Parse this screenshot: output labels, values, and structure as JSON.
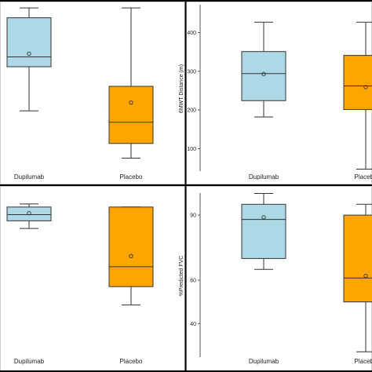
{
  "colors": {
    "dupilumab": "#add8e6",
    "placebo": "#ffa500",
    "outline": "#333333",
    "divider": "#000000"
  },
  "chart_data": [
    {
      "type": "box",
      "panel": "top-left",
      "xlabel": "",
      "ylabel": "",
      "ylim": [
        0,
        100
      ],
      "yticks": [],
      "categories": [
        "Dupilumab",
        "Placebo"
      ],
      "boxes": [
        {
          "label": "Dupilumab",
          "min": 35,
          "q1": 62,
          "median": 68,
          "q3": 92,
          "max": 98,
          "mean": 70
        },
        {
          "label": "Placebo",
          "min": 6,
          "q1": 15,
          "median": 28,
          "q3": 50,
          "max": 98,
          "mean": 40
        }
      ]
    },
    {
      "type": "box",
      "panel": "top-right",
      "xlabel": "",
      "ylabel": "6MWT Distance (m)",
      "ylim": [
        50,
        460
      ],
      "yticks": [
        100,
        200,
        300,
        400
      ],
      "categories": [
        "Dupilumab",
        "Placebo"
      ],
      "boxes": [
        {
          "label": "Dupilumab",
          "min": 182,
          "q1": 224,
          "median": 294,
          "q3": 351,
          "max": 427,
          "mean": 293
        },
        {
          "label": "Placebo",
          "min": 47,
          "q1": 201,
          "median": 262,
          "q3": 341,
          "max": 427,
          "mean": 259
        }
      ]
    },
    {
      "type": "box",
      "panel": "bottom-left",
      "xlabel": "",
      "ylabel": "",
      "ylim": [
        0,
        100
      ],
      "yticks": [],
      "categories": [
        "Dupilumab",
        "Placebo"
      ],
      "boxes": [
        {
          "label": "Dupilumab",
          "min": 82,
          "q1": 87,
          "median": 91,
          "q3": 96,
          "max": 98,
          "mean": 92
        },
        {
          "label": "Placebo",
          "min": 32,
          "q1": 44,
          "median": 57,
          "q3": 96,
          "max": 96,
          "mean": 64
        }
      ]
    },
    {
      "type": "box",
      "panel": "bottom-right",
      "xlabel": "",
      "ylabel": "%Predicted FVC",
      "ylim": [
        26,
        98
      ],
      "yticks": [
        40,
        60,
        90
      ],
      "categories": [
        "Dupilumab",
        "Placebo"
      ],
      "boxes": [
        {
          "label": "Dupilumab",
          "min": 65,
          "q1": 70,
          "median": 88,
          "q3": 95,
          "max": 100,
          "mean": 89
        },
        {
          "label": "Placebo",
          "min": 27,
          "q1": 50,
          "median": 61,
          "q3": 90,
          "max": 95,
          "mean": 62
        }
      ]
    }
  ]
}
